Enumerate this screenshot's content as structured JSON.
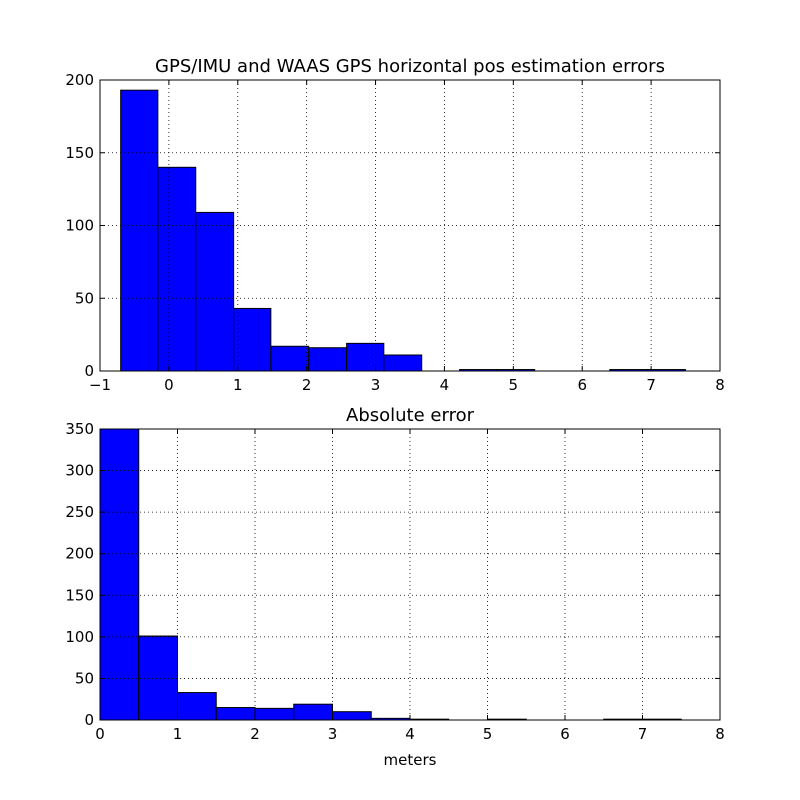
{
  "colors": {
    "bar": "#0000ff",
    "edge": "#000000",
    "background": "#ffffff"
  },
  "chart_data": [
    {
      "type": "bar",
      "title": "GPS/IMU and WAAS GPS horizontal pos estimation errors",
      "xlabel": "",
      "ylabel": "",
      "xlim": [
        -1,
        8
      ],
      "ylim": [
        0,
        200
      ],
      "xticks": [
        "−1",
        "0",
        "1",
        "2",
        "3",
        "4",
        "5",
        "6",
        "7",
        "8"
      ],
      "xtick_values": [
        -1,
        0,
        1,
        2,
        3,
        4,
        5,
        6,
        7,
        8
      ],
      "yticks": [
        "0",
        "50",
        "100",
        "150",
        "200"
      ],
      "ytick_values": [
        0,
        50,
        100,
        150,
        200
      ],
      "grid": true,
      "bin_edges": [
        -0.7,
        -0.16,
        0.39,
        0.94,
        1.48,
        2.03,
        2.58,
        3.12,
        3.67,
        4.22,
        4.76,
        5.31,
        5.86,
        6.4,
        6.95,
        7.5
      ],
      "values": [
        193,
        140,
        109,
        43,
        17,
        16,
        19,
        11,
        0,
        1,
        1,
        0,
        0,
        1,
        1
      ]
    },
    {
      "type": "bar",
      "title": "Absolute error",
      "xlabel": "meters",
      "ylabel": "",
      "xlim": [
        0,
        8
      ],
      "ylim": [
        0,
        350
      ],
      "xticks": [
        "0",
        "1",
        "2",
        "3",
        "4",
        "5",
        "6",
        "7",
        "8"
      ],
      "xtick_values": [
        0,
        1,
        2,
        3,
        4,
        5,
        6,
        7,
        8
      ],
      "yticks": [
        "0",
        "50",
        "100",
        "150",
        "200",
        "250",
        "300",
        "350"
      ],
      "ytick_values": [
        0,
        50,
        100,
        150,
        200,
        250,
        300,
        350
      ],
      "grid": true,
      "bin_edges": [
        0,
        0.5,
        1,
        1.5,
        2,
        2.5,
        3,
        3.5,
        4,
        4.5,
        5,
        5.5,
        6,
        6.5,
        7,
        7.5
      ],
      "values": [
        350,
        101,
        33,
        15,
        14,
        19,
        10,
        2,
        1,
        0,
        1,
        0,
        0,
        1,
        1
      ]
    }
  ]
}
